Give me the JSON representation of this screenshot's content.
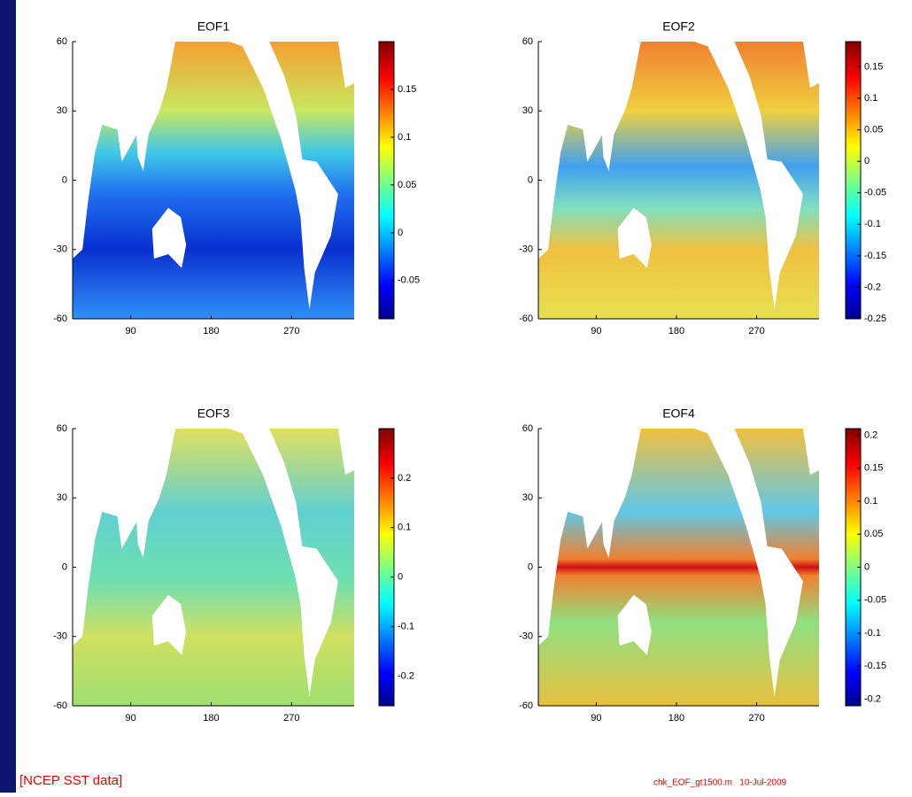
{
  "chart_data": [
    {
      "type": "heatmap",
      "title": "EOF1",
      "xlim": [
        25,
        340
      ],
      "xticks": [
        90,
        180,
        270
      ],
      "ylim": [
        -60,
        60
      ],
      "yticks": [
        -60,
        -30,
        0,
        30,
        60
      ],
      "colorbar": {
        "lim": [
          -0.09,
          0.2
        ],
        "ticks": [
          -0.05,
          0,
          0.05,
          0.1,
          0.15
        ]
      }
    },
    {
      "type": "heatmap",
      "title": "EOF2",
      "xlim": [
        25,
        340
      ],
      "xticks": [
        90,
        180,
        270
      ],
      "ylim": [
        -60,
        60
      ],
      "yticks": [
        -60,
        -30,
        0,
        30,
        60
      ],
      "colorbar": {
        "lim": [
          -0.25,
          0.19
        ],
        "ticks": [
          -0.25,
          -0.2,
          -0.15,
          -0.1,
          -0.05,
          0,
          0.05,
          0.1,
          0.15
        ]
      }
    },
    {
      "type": "heatmap",
      "title": "EOF3",
      "xlim": [
        25,
        340
      ],
      "xticks": [
        90,
        180,
        270
      ],
      "ylim": [
        -60,
        60
      ],
      "yticks": [
        -60,
        -30,
        0,
        30,
        60
      ],
      "colorbar": {
        "lim": [
          -0.26,
          0.3
        ],
        "ticks": [
          -0.2,
          -0.1,
          0,
          0.1,
          0.2
        ]
      }
    },
    {
      "type": "heatmap",
      "title": "EOF4",
      "xlim": [
        25,
        340
      ],
      "xticks": [
        90,
        180,
        270
      ],
      "ylim": [
        -60,
        60
      ],
      "yticks": [
        -60,
        -30,
        0,
        30,
        60
      ],
      "colorbar": {
        "lim": [
          -0.21,
          0.21
        ],
        "ticks": [
          -0.2,
          -0.15,
          -0.1,
          -0.05,
          0,
          0.05,
          0.1,
          0.15,
          0.2
        ]
      }
    }
  ],
  "source": "[NCEP SST data]",
  "footer_note": "chk_EOF_gt1500.m   10-Jul-2009"
}
